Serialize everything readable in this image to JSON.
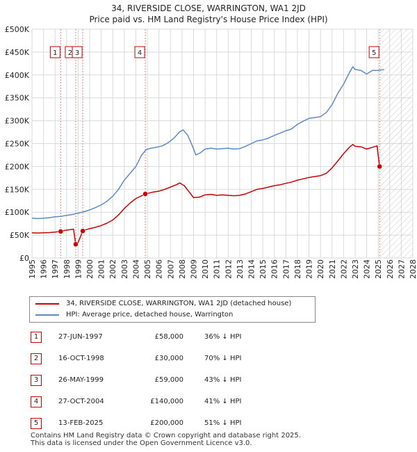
{
  "chart_data": {
    "type": "line",
    "title": "34, RIVERSIDE CLOSE, WARRINGTON, WA1 2JD",
    "subtitle": "Price paid vs. HM Land Registry's House Price Index (HPI)",
    "xlim": [
      1995,
      2028
    ],
    "ylim": [
      0,
      500000
    ],
    "x_ticks": [
      "1995",
      "1996",
      "1997",
      "1998",
      "1999",
      "2000",
      "2001",
      "2002",
      "2003",
      "2004",
      "2005",
      "2006",
      "2007",
      "2008",
      "2009",
      "2010",
      "2011",
      "2012",
      "2013",
      "2014",
      "2015",
      "2016",
      "2017",
      "2018",
      "2019",
      "2020",
      "2021",
      "2022",
      "2023",
      "2024",
      "2025",
      "2026",
      "2027",
      "2028"
    ],
    "y_ticks": [
      {
        "value": 0,
        "label": "£0"
      },
      {
        "value": 50000,
        "label": "£50K"
      },
      {
        "value": 100000,
        "label": "£100K"
      },
      {
        "value": 150000,
        "label": "£150K"
      },
      {
        "value": 200000,
        "label": "£200K"
      },
      {
        "value": 250000,
        "label": "£250K"
      },
      {
        "value": 300000,
        "label": "£300K"
      },
      {
        "value": 350000,
        "label": "£350K"
      },
      {
        "value": 400000,
        "label": "£400K"
      },
      {
        "value": 450000,
        "label": "£450K"
      },
      {
        "value": 500000,
        "label": "£500K"
      }
    ],
    "future_shading_start": 2025.12,
    "colors": {
      "property": "#cc0000",
      "hpi": "#5b8cc7",
      "grid": "#d9d9d9",
      "vline": "#e08080"
    },
    "series": [
      {
        "name": "34, RIVERSIDE CLOSE, WARRINGTON, WA1 2JD (detached house)",
        "color": "#cc0000",
        "points": [
          [
            1995.0,
            55000
          ],
          [
            1995.5,
            54500
          ],
          [
            1996.0,
            55000
          ],
          [
            1996.5,
            55500
          ],
          [
            1997.0,
            56500
          ],
          [
            1997.49,
            58000
          ],
          [
            1997.8,
            60000
          ],
          [
            1998.2,
            61500
          ],
          [
            1998.6,
            63000
          ],
          [
            1998.79,
            30000
          ],
          [
            1999.0,
            34000
          ],
          [
            1999.4,
            59000
          ],
          [
            1999.7,
            62000
          ],
          [
            2000.0,
            64000
          ],
          [
            2000.5,
            67000
          ],
          [
            2001.0,
            71000
          ],
          [
            2001.5,
            76000
          ],
          [
            2002.0,
            83000
          ],
          [
            2002.5,
            94000
          ],
          [
            2003.0,
            108000
          ],
          [
            2003.5,
            120000
          ],
          [
            2004.0,
            130000
          ],
          [
            2004.82,
            140000
          ],
          [
            2005.0,
            141000
          ],
          [
            2005.5,
            144000
          ],
          [
            2006.0,
            146000
          ],
          [
            2006.5,
            150000
          ],
          [
            2007.0,
            155000
          ],
          [
            2007.5,
            160000
          ],
          [
            2007.8,
            164000
          ],
          [
            2008.2,
            158000
          ],
          [
            2008.6,
            145000
          ],
          [
            2009.0,
            132000
          ],
          [
            2009.5,
            133000
          ],
          [
            2010.0,
            138000
          ],
          [
            2010.5,
            139000
          ],
          [
            2011.0,
            137000
          ],
          [
            2011.5,
            138000
          ],
          [
            2012.0,
            137000
          ],
          [
            2012.5,
            136000
          ],
          [
            2013.0,
            137000
          ],
          [
            2013.5,
            140000
          ],
          [
            2014.0,
            145000
          ],
          [
            2014.5,
            150000
          ],
          [
            2015.0,
            152000
          ],
          [
            2015.5,
            155000
          ],
          [
            2016.0,
            158000
          ],
          [
            2016.5,
            160000
          ],
          [
            2017.0,
            163000
          ],
          [
            2017.5,
            166000
          ],
          [
            2018.0,
            170000
          ],
          [
            2018.5,
            173000
          ],
          [
            2019.0,
            176000
          ],
          [
            2019.5,
            178000
          ],
          [
            2020.0,
            180000
          ],
          [
            2020.5,
            185000
          ],
          [
            2021.0,
            197000
          ],
          [
            2021.5,
            212000
          ],
          [
            2022.0,
            228000
          ],
          [
            2022.5,
            242000
          ],
          [
            2022.8,
            248000
          ],
          [
            2023.0,
            244000
          ],
          [
            2023.5,
            243000
          ],
          [
            2024.0,
            238000
          ],
          [
            2024.5,
            242000
          ],
          [
            2024.9,
            245000
          ],
          [
            2025.12,
            200000
          ]
        ]
      },
      {
        "name": "HPI: Average price, detached house, Warrington",
        "color": "#5b8cc7",
        "points": [
          [
            1995.0,
            87000
          ],
          [
            1995.5,
            86000
          ],
          [
            1996.0,
            87000
          ],
          [
            1996.5,
            88000
          ],
          [
            1997.0,
            90000
          ],
          [
            1997.5,
            91000
          ],
          [
            1998.0,
            93000
          ],
          [
            1998.5,
            95000
          ],
          [
            1999.0,
            98000
          ],
          [
            1999.5,
            101000
          ],
          [
            2000.0,
            105000
          ],
          [
            2000.5,
            110000
          ],
          [
            2001.0,
            116000
          ],
          [
            2001.5,
            124000
          ],
          [
            2002.0,
            135000
          ],
          [
            2002.5,
            150000
          ],
          [
            2003.0,
            170000
          ],
          [
            2003.5,
            185000
          ],
          [
            2004.0,
            200000
          ],
          [
            2004.5,
            225000
          ],
          [
            2004.9,
            237000
          ],
          [
            2005.3,
            240000
          ],
          [
            2005.8,
            242000
          ],
          [
            2006.3,
            245000
          ],
          [
            2006.8,
            252000
          ],
          [
            2007.3,
            262000
          ],
          [
            2007.8,
            276000
          ],
          [
            2008.1,
            280000
          ],
          [
            2008.5,
            268000
          ],
          [
            2008.9,
            245000
          ],
          [
            2009.2,
            225000
          ],
          [
            2009.6,
            230000
          ],
          [
            2010.0,
            238000
          ],
          [
            2010.5,
            240000
          ],
          [
            2011.0,
            238000
          ],
          [
            2011.5,
            239000
          ],
          [
            2012.0,
            240000
          ],
          [
            2012.5,
            238000
          ],
          [
            2013.0,
            239000
          ],
          [
            2013.5,
            244000
          ],
          [
            2014.0,
            250000
          ],
          [
            2014.5,
            256000
          ],
          [
            2015.0,
            258000
          ],
          [
            2015.5,
            262000
          ],
          [
            2016.0,
            268000
          ],
          [
            2016.5,
            273000
          ],
          [
            2017.0,
            278000
          ],
          [
            2017.5,
            282000
          ],
          [
            2018.0,
            292000
          ],
          [
            2018.5,
            299000
          ],
          [
            2019.0,
            305000
          ],
          [
            2019.5,
            307000
          ],
          [
            2020.0,
            309000
          ],
          [
            2020.5,
            318000
          ],
          [
            2021.0,
            335000
          ],
          [
            2021.5,
            360000
          ],
          [
            2022.0,
            380000
          ],
          [
            2022.5,
            405000
          ],
          [
            2022.8,
            418000
          ],
          [
            2023.0,
            412000
          ],
          [
            2023.5,
            410000
          ],
          [
            2024.0,
            402000
          ],
          [
            2024.5,
            410000
          ],
          [
            2025.0,
            410000
          ],
          [
            2025.5,
            412000
          ]
        ]
      }
    ],
    "transactions": [
      {
        "id": "1",
        "x": 1997.49,
        "price": 58000,
        "date": "27-JUN-1997",
        "price_label": "£58,000",
        "hpi_label": "36% ↓ HPI"
      },
      {
        "id": "2",
        "x": 1998.79,
        "price": 30000,
        "date": "16-OCT-1998",
        "price_label": "£30,000",
        "hpi_label": "70% ↓ HPI"
      },
      {
        "id": "3",
        "x": 1999.4,
        "price": 59000,
        "date": "26-MAY-1999",
        "price_label": "£59,000",
        "hpi_label": "43% ↓ HPI"
      },
      {
        "id": "4",
        "x": 2004.82,
        "price": 140000,
        "date": "27-OCT-2004",
        "price_label": "£140,000",
        "hpi_label": "41% ↓ HPI"
      },
      {
        "id": "5",
        "x": 2025.12,
        "price": 200000,
        "date": "13-FEB-2025",
        "price_label": "£200,000",
        "hpi_label": "51% ↓ HPI"
      }
    ]
  },
  "legend": {
    "property_label": "34, RIVERSIDE CLOSE, WARRINGTON, WA1 2JD (detached house)",
    "hpi_label": "HPI: Average price, detached house, Warrington"
  },
  "footer": {
    "line1": "Contains HM Land Registry data © Crown copyright and database right 2025.",
    "line2": "This data is licensed under the Open Government Licence v3.0."
  }
}
